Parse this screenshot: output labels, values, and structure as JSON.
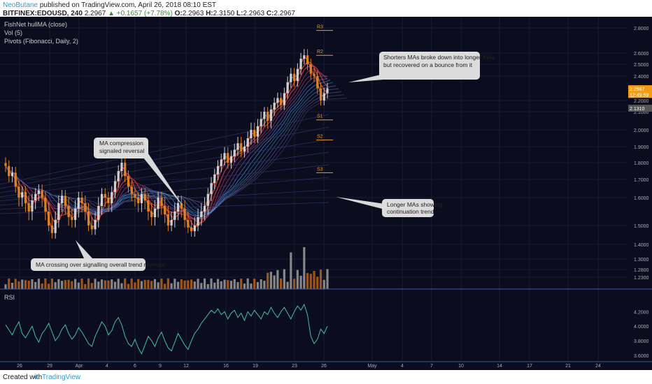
{
  "header": {
    "author": "NeoButane",
    "published": "published on TradingView.com, April 26, 2018 08:10 EST",
    "symbol": "BITFINEX:EDOUSD, 240",
    "last": "2.2967",
    "change": "▲ +0.1657 (+7.78%)",
    "o_label": "O:",
    "o": "2.2963",
    "h_label": "H:",
    "h": "2.3150",
    "l_label": "L:",
    "l": "2.2963",
    "c_label": "C:",
    "c": "2.2967"
  },
  "indicators": [
    "FishNet hullMA (close)",
    "Vol (5)",
    "Pivots (Fibonacci, Daily, 2)"
  ],
  "footer": {
    "created_with": "Created with",
    "brand": "TradingView"
  },
  "colors": {
    "background": "#0b0d1f",
    "up": "#d0d0d0",
    "down": "#e0821f",
    "pivot": "#e89a2a",
    "rsi": "#3fbfb0",
    "price_tag": "#f39c12"
  },
  "chart_data": [
    {
      "type": "candlestick",
      "title": "",
      "price_ticks": [
        "2.8000",
        "2.6000",
        "2.5000",
        "2.4000",
        "2.2000",
        "2.1000",
        "2.0000",
        "1.9000",
        "1.8000",
        "1.7000",
        "1.6000",
        "1.5000",
        "1.4000",
        "1.3000",
        "1.2800",
        "1.2300"
      ],
      "price_tags": [
        {
          "label": "2.2967",
          "value": 2.2967,
          "color": "#f39c12"
        },
        {
          "label": "12:49:59",
          "value": 2.25,
          "color": "#f39c12"
        },
        {
          "label": "2.1310",
          "value": 2.131,
          "color": "#555"
        }
      ],
      "x_ticks": [
        "26",
        "29",
        "Apr",
        "4",
        "6",
        "9",
        "12",
        "16",
        "19",
        "23",
        "26",
        "May",
        "4",
        "7",
        "10",
        "14",
        "17",
        "21",
        "24"
      ],
      "pivots": [
        {
          "label": "R3",
          "value": 2.78
        },
        {
          "label": "R2",
          "value": 2.58
        },
        {
          "label": "S1",
          "value": 2.055
        },
        {
          "label": "S2",
          "value": 1.94
        },
        {
          "label": "S3",
          "value": 1.74
        }
      ],
      "close_series": [
        1.78,
        1.72,
        1.74,
        1.66,
        1.6,
        1.63,
        1.58,
        1.55,
        1.59,
        1.62,
        1.64,
        1.6,
        1.55,
        1.5,
        1.46,
        1.52,
        1.58,
        1.61,
        1.57,
        1.53,
        1.52,
        1.56,
        1.6,
        1.58,
        1.55,
        1.5,
        1.48,
        1.52,
        1.57,
        1.62,
        1.6,
        1.58,
        1.63,
        1.69,
        1.75,
        1.8,
        1.72,
        1.66,
        1.62,
        1.6,
        1.58,
        1.62,
        1.59,
        1.55,
        1.53,
        1.56,
        1.6,
        1.57,
        1.54,
        1.5,
        1.52,
        1.55,
        1.58,
        1.56,
        1.52,
        1.49,
        1.47,
        1.5,
        1.53,
        1.55,
        1.57,
        1.62,
        1.68,
        1.73,
        1.78,
        1.82,
        1.86,
        1.8,
        1.84,
        1.88,
        1.92,
        1.87,
        1.9,
        1.95,
        2.0,
        1.96,
        2.02,
        2.06,
        2.1,
        2.05,
        2.12,
        2.18,
        2.22,
        2.16,
        2.26,
        2.35,
        2.42,
        2.36,
        2.46,
        2.55,
        2.58,
        2.5,
        2.42,
        2.4,
        2.3,
        2.2,
        2.26,
        2.3
      ],
      "annotations": [
        "Shorters MAs broke down into longer MAs but recovered on a bounce from it",
        "MA compression signaled reversal",
        "Longer MAs showing continuation trend",
        "MA crossing over signalling overall trend reversal"
      ]
    },
    {
      "type": "line",
      "title": "RSI",
      "y_ticks": [
        "4.2000",
        "4.0000",
        "3.8000",
        "3.6000"
      ],
      "values": [
        4.02,
        3.95,
        3.88,
        3.98,
        4.06,
        3.9,
        3.84,
        3.92,
        4.0,
        3.86,
        3.78,
        3.9,
        3.96,
        4.04,
        3.92,
        3.8,
        3.86,
        3.96,
        4.02,
        3.9,
        3.82,
        3.88,
        3.98,
        3.92,
        3.84,
        3.76,
        3.72,
        3.86,
        3.96,
        4.06,
        4.0,
        3.88,
        3.94,
        4.06,
        4.12,
        4.02,
        3.86,
        3.76,
        3.72,
        3.82,
        3.7,
        3.62,
        3.74,
        3.86,
        3.8,
        3.72,
        3.84,
        3.92,
        3.8,
        3.7,
        3.66,
        3.78,
        3.9,
        3.82,
        3.74,
        3.68,
        3.8,
        3.9,
        3.96,
        4.04,
        4.1,
        4.16,
        4.22,
        4.18,
        4.24,
        4.16,
        4.2,
        4.1,
        4.18,
        4.22,
        4.12,
        4.18,
        4.08,
        4.2,
        4.14,
        4.22,
        4.16,
        4.1,
        4.2,
        4.16,
        4.26,
        4.18,
        4.12,
        4.2,
        4.26,
        4.18,
        4.1,
        4.2,
        4.28,
        4.22,
        4.3,
        4.16,
        3.86,
        3.76,
        3.82,
        3.96,
        3.9,
        4.0
      ],
      "ylim": [
        3.55,
        4.32
      ]
    }
  ]
}
